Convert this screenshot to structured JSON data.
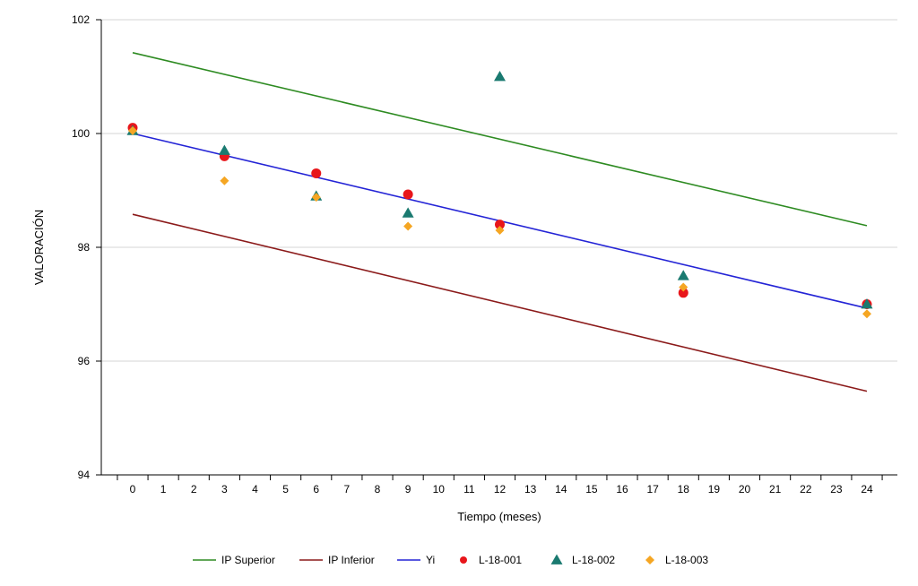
{
  "chart_data": {
    "type": "scatter",
    "xlabel": "Tiempo (meses)",
    "ylabel": "VALORACIÓN",
    "xlim": [
      -1,
      25
    ],
    "ylim": [
      94,
      102
    ],
    "x_ticks": [
      0,
      1,
      2,
      3,
      4,
      5,
      6,
      7,
      8,
      9,
      10,
      11,
      12,
      13,
      14,
      15,
      16,
      17,
      18,
      19,
      20,
      21,
      22,
      23,
      24
    ],
    "x_tick_labels": [
      "0",
      "1",
      "2",
      "3",
      "4",
      "5",
      "6",
      "7",
      "8",
      "9",
      "10",
      "11",
      "12",
      "13",
      "14",
      "15",
      "16",
      "17",
      "18",
      "19",
      "20",
      "21",
      "22",
      "23",
      "24"
    ],
    "y_ticks": [
      94,
      96,
      98,
      100,
      102
    ],
    "y_tick_labels": [
      "94",
      "96",
      "98",
      "100",
      "102"
    ],
    "grid": "horizontal",
    "legend_position": "bottom",
    "lines": [
      {
        "name": "IP Superior",
        "color": "#2e8b22",
        "x": [
          0,
          24
        ],
        "y": [
          101.42,
          98.38
        ]
      },
      {
        "name": "IP Inferior",
        "color": "#8b1a1a",
        "x": [
          0,
          24
        ],
        "y": [
          98.58,
          95.47
        ]
      },
      {
        "name": "Yi",
        "color": "#2424d6",
        "x": [
          0,
          24
        ],
        "y": [
          100.0,
          96.93
        ]
      }
    ],
    "series": [
      {
        "name": "L-18-001",
        "marker": "circle",
        "color": "#e8161b",
        "x": [
          0,
          3,
          6,
          9,
          12,
          18,
          24
        ],
        "y": [
          100.1,
          99.6,
          99.3,
          98.93,
          98.4,
          97.2,
          97.0
        ]
      },
      {
        "name": "L-18-002",
        "marker": "triangle",
        "color": "#1a7a70",
        "x": [
          0,
          3,
          6,
          9,
          12,
          18,
          24
        ],
        "y": [
          100.05,
          99.7,
          98.9,
          98.6,
          101.0,
          97.5,
          97.0
        ]
      },
      {
        "name": "L-18-003",
        "marker": "diamond",
        "color": "#f5a623",
        "x": [
          0,
          3,
          6,
          9,
          12,
          18,
          24
        ],
        "y": [
          100.05,
          99.17,
          98.88,
          98.37,
          98.3,
          97.3,
          96.83
        ]
      }
    ]
  }
}
